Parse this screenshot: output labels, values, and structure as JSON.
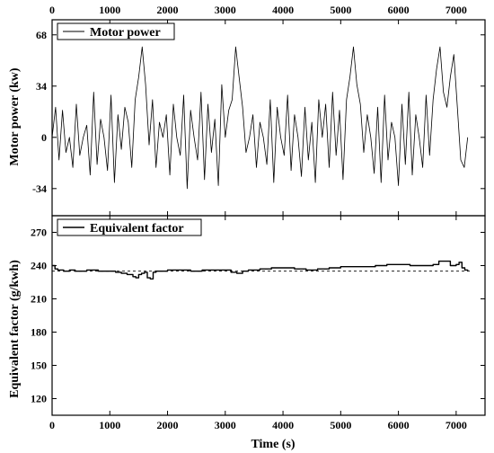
{
  "chart_data": [
    {
      "type": "line",
      "panel": "top",
      "ylabel": "Motor power (kw)",
      "xlim": [
        0,
        7500
      ],
      "ylim": [
        -52,
        78
      ],
      "yticks": [
        -34,
        0,
        34,
        68
      ],
      "xticks_top": [
        0,
        1000,
        2000,
        3000,
        4000,
        5000,
        6000,
        7000
      ],
      "series": [
        {
          "name": "Motor power",
          "color": "#000000",
          "x": [
            0,
            60,
            120,
            180,
            240,
            300,
            360,
            420,
            480,
            540,
            600,
            660,
            720,
            780,
            840,
            900,
            960,
            1020,
            1080,
            1140,
            1200,
            1260,
            1320,
            1380,
            1440,
            1500,
            1560,
            1620,
            1680,
            1740,
            1800,
            1860,
            1920,
            1980,
            2040,
            2100,
            2160,
            2220,
            2280,
            2340,
            2400,
            2460,
            2520,
            2580,
            2640,
            2700,
            2760,
            2820,
            2880,
            2940,
            3000,
            3060,
            3120,
            3180,
            3240,
            3300,
            3360,
            3420,
            3480,
            3540,
            3600,
            3660,
            3720,
            3780,
            3840,
            3900,
            3960,
            4020,
            4080,
            4140,
            4200,
            4260,
            4320,
            4380,
            4440,
            4500,
            4560,
            4620,
            4680,
            4740,
            4800,
            4860,
            4920,
            4980,
            5040,
            5100,
            5160,
            5220,
            5280,
            5340,
            5400,
            5460,
            5520,
            5580,
            5640,
            5700,
            5760,
            5820,
            5880,
            5940,
            6000,
            6060,
            6120,
            6180,
            6240,
            6300,
            6360,
            6420,
            6480,
            6540,
            6600,
            6660,
            6720,
            6780,
            6840,
            6900,
            6960,
            7020,
            7080,
            7140,
            7200
          ],
          "y": [
            0,
            20,
            -15,
            18,
            -10,
            0,
            -20,
            22,
            -12,
            0,
            8,
            -25,
            30,
            -18,
            12,
            0,
            -22,
            28,
            -30,
            15,
            -8,
            20,
            10,
            -20,
            25,
            40,
            60,
            35,
            -5,
            25,
            -20,
            10,
            0,
            15,
            -25,
            22,
            0,
            -12,
            28,
            -34,
            18,
            0,
            -15,
            30,
            -28,
            22,
            -10,
            12,
            -32,
            35,
            0,
            18,
            25,
            60,
            40,
            20,
            -10,
            0,
            15,
            -20,
            10,
            0,
            -18,
            25,
            -30,
            20,
            0,
            -12,
            28,
            -22,
            15,
            0,
            -26,
            20,
            -15,
            10,
            -30,
            25,
            0,
            22,
            -20,
            30,
            -12,
            18,
            -28,
            25,
            40,
            60,
            35,
            22,
            -10,
            15,
            0,
            -24,
            20,
            -30,
            28,
            -15,
            10,
            0,
            -32,
            22,
            -18,
            30,
            -25,
            15,
            0,
            -20,
            28,
            -12,
            25,
            45,
            60,
            30,
            20,
            40,
            55,
            20,
            -15,
            -20,
            0
          ]
        }
      ]
    },
    {
      "type": "line",
      "panel": "bottom",
      "xlabel": "Time (s)",
      "ylabel": "Equivalent factor (g/kwh)",
      "xlim": [
        0,
        7500
      ],
      "ylim": [
        105,
        285
      ],
      "yticks": [
        120,
        150,
        180,
        210,
        240,
        270
      ],
      "xticks": [
        0,
        1000,
        2000,
        3000,
        4000,
        5000,
        6000,
        7000
      ],
      "reference_line": {
        "y": 235,
        "style": "dashed"
      },
      "series": [
        {
          "name": "Equivalent factor",
          "color": "#000000",
          "x": [
            0,
            50,
            100,
            200,
            300,
            400,
            600,
            800,
            1000,
            1100,
            1200,
            1300,
            1400,
            1450,
            1500,
            1550,
            1600,
            1650,
            1700,
            1750,
            1800,
            1900,
            2000,
            2200,
            2400,
            2600,
            2800,
            3000,
            3100,
            3200,
            3300,
            3400,
            3500,
            3600,
            3800,
            4000,
            4200,
            4400,
            4600,
            4800,
            5000,
            5200,
            5400,
            5600,
            5800,
            6000,
            6200,
            6400,
            6600,
            6700,
            6800,
            6900,
            7000,
            7050,
            7100,
            7150,
            7200
          ],
          "y": [
            240,
            237,
            236,
            235,
            236,
            235,
            236,
            235,
            235,
            234,
            233,
            232,
            230,
            229,
            232,
            233,
            234,
            229,
            228,
            234,
            235,
            235,
            236,
            236,
            235,
            236,
            236,
            236,
            234,
            233,
            235,
            236,
            236,
            237,
            238,
            238,
            237,
            236,
            237,
            238,
            239,
            239,
            239,
            240,
            241,
            241,
            240,
            240,
            241,
            244,
            244,
            240,
            241,
            243,
            238,
            236,
            235
          ]
        }
      ]
    }
  ]
}
